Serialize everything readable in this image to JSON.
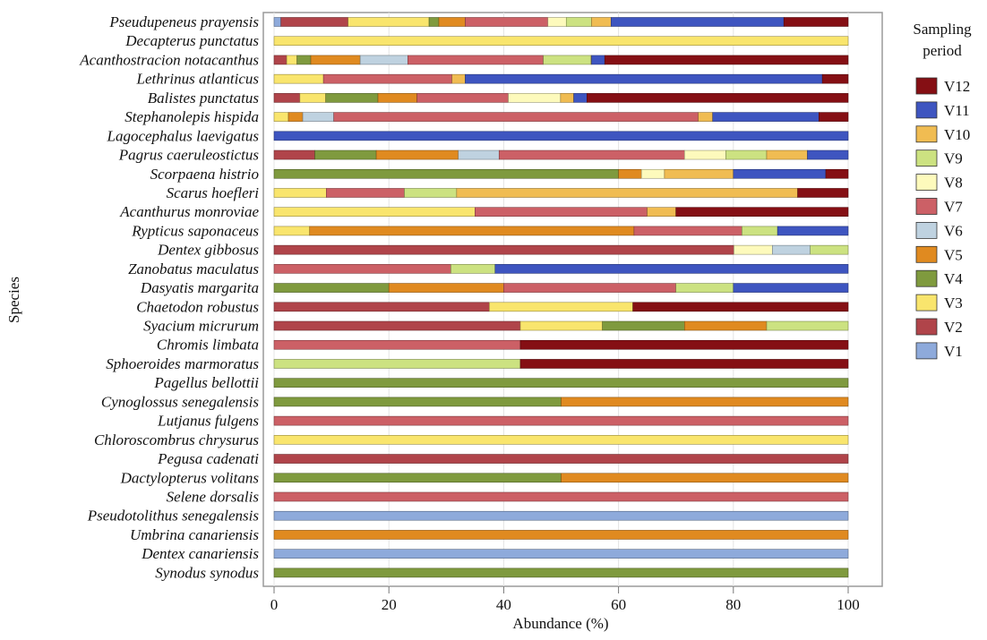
{
  "chart_data": {
    "type": "bar",
    "orientation": "horizontal",
    "stacked": true,
    "xlabel": "Abundance (%)",
    "ylabel": "Species",
    "xlim": [
      0,
      100
    ],
    "xticks": [
      0,
      20,
      40,
      60,
      80,
      100
    ],
    "grid": "vertical gridlines",
    "legend": {
      "title_line1": "Sampling",
      "title_line2": "period",
      "placement": "right",
      "order": [
        "V12",
        "V11",
        "V10",
        "V9",
        "V8",
        "V7",
        "V6",
        "V5",
        "V4",
        "V3",
        "V2",
        "V1"
      ]
    },
    "series": [
      {
        "name": "V1",
        "color": "#8eaadb"
      },
      {
        "name": "V2",
        "color": "#b0444a"
      },
      {
        "name": "V3",
        "color": "#f9e56d"
      },
      {
        "name": "V4",
        "color": "#7f9a3e"
      },
      {
        "name": "V5",
        "color": "#e08a20"
      },
      {
        "name": "V6",
        "color": "#bfd2e0"
      },
      {
        "name": "V7",
        "color": "#cc6066"
      },
      {
        "name": "V8",
        "color": "#fdfabc"
      },
      {
        "name": "V9",
        "color": "#cce281"
      },
      {
        "name": "V10",
        "color": "#f0bc52"
      },
      {
        "name": "V11",
        "color": "#3e55c0"
      },
      {
        "name": "V12",
        "color": "#850f14"
      }
    ],
    "categories": [
      {
        "name": "Pseudupeneus prayensis",
        "segments": [
          [
            "V1",
            1.2
          ],
          [
            "V2",
            11.7
          ],
          [
            "V3",
            14.1
          ],
          [
            "V4",
            1.7
          ],
          [
            "V5",
            4.6
          ],
          [
            "V7",
            14.4
          ],
          [
            "V8",
            3.2
          ],
          [
            "V9",
            4.4
          ],
          [
            "V10",
            3.4
          ],
          [
            "V11",
            30.1
          ],
          [
            "V12",
            11.2
          ]
        ]
      },
      {
        "name": "Decapterus punctatus",
        "segments": [
          [
            "V3",
            100
          ]
        ]
      },
      {
        "name": "Acanthostracion notacanthus",
        "segments": [
          [
            "V2",
            2.2
          ],
          [
            "V3",
            1.8
          ],
          [
            "V4",
            2.4
          ],
          [
            "V5",
            8.6
          ],
          [
            "V6",
            8.3
          ],
          [
            "V7",
            23.6
          ],
          [
            "V9",
            8.3
          ],
          [
            "V10",
            0.1
          ],
          [
            "V11",
            2.3
          ],
          [
            "V12",
            42.4
          ]
        ]
      },
      {
        "name": "Lethrinus atlanticus",
        "segments": [
          [
            "V3",
            8.6
          ],
          [
            "V7",
            22.4
          ],
          [
            "V10",
            2.3
          ],
          [
            "V11",
            62.2
          ],
          [
            "V12",
            4.5
          ]
        ]
      },
      {
        "name": "Balistes punctatus",
        "segments": [
          [
            "V2",
            4.5
          ],
          [
            "V3",
            4.5
          ],
          [
            "V4",
            9.1
          ],
          [
            "V5",
            6.8
          ],
          [
            "V7",
            15.9
          ],
          [
            "V8",
            9.1
          ],
          [
            "V10",
            2.3
          ],
          [
            "V11",
            2.3
          ],
          [
            "V12",
            45.5
          ]
        ]
      },
      {
        "name": "Stephanolepis hispida",
        "segments": [
          [
            "V3",
            2.5
          ],
          [
            "V5",
            2.5
          ],
          [
            "V6",
            5.4
          ],
          [
            "V7",
            63.5
          ],
          [
            "V10",
            2.5
          ],
          [
            "V11",
            18.5
          ],
          [
            "V12",
            5.1
          ]
        ]
      },
      {
        "name": "Lagocephalus laevigatus",
        "segments": [
          [
            "V11",
            100
          ]
        ]
      },
      {
        "name": "Pagrus caeruleostictus",
        "segments": [
          [
            "V2",
            7.1
          ],
          [
            "V4",
            10.7
          ],
          [
            "V5",
            14.3
          ],
          [
            "V6",
            7.1
          ],
          [
            "V7",
            32.3
          ],
          [
            "V8",
            7.2
          ],
          [
            "V9",
            7.1
          ],
          [
            "V10",
            7.1
          ],
          [
            "V11",
            7.1
          ]
        ]
      },
      {
        "name": "Scorpaena histrio",
        "segments": [
          [
            "V4",
            60
          ],
          [
            "V5",
            4
          ],
          [
            "V8",
            4
          ],
          [
            "V10",
            12
          ],
          [
            "V11",
            16.1
          ],
          [
            "V12",
            3.9
          ]
        ]
      },
      {
        "name": "Scarus hoefleri",
        "segments": [
          [
            "V3",
            9.1
          ],
          [
            "V7",
            13.6
          ],
          [
            "V9",
            9.1
          ],
          [
            "V10",
            59.4
          ],
          [
            "V12",
            8.8
          ]
        ]
      },
      {
        "name": "Acanthurus monroviae",
        "segments": [
          [
            "V3",
            35
          ],
          [
            "V7",
            30
          ],
          [
            "V10",
            5
          ],
          [
            "V12",
            30
          ]
        ]
      },
      {
        "name": "Rypticus saponaceus",
        "segments": [
          [
            "V3",
            6.2
          ],
          [
            "V5",
            56.5
          ],
          [
            "V7",
            18.8
          ],
          [
            "V9",
            6.2
          ],
          [
            "V11",
            12.3
          ]
        ]
      },
      {
        "name": "Dentex gibbosus",
        "segments": [
          [
            "V2",
            80.1
          ],
          [
            "V8",
            6.7
          ],
          [
            "V6",
            6.6
          ],
          [
            "V9",
            6.6
          ]
        ]
      },
      {
        "name": "Zanobatus maculatus",
        "segments": [
          [
            "V7",
            30.8
          ],
          [
            "V9",
            7.7
          ],
          [
            "V11",
            61.5
          ]
        ]
      },
      {
        "name": "Dasyatis margarita",
        "segments": [
          [
            "V4",
            20
          ],
          [
            "V5",
            20
          ],
          [
            "V7",
            30
          ],
          [
            "V9",
            10
          ],
          [
            "V11",
            20
          ]
        ]
      },
      {
        "name": "Chaetodon robustus",
        "segments": [
          [
            "V2",
            37.5
          ],
          [
            "V3",
            25
          ],
          [
            "V12",
            37.5
          ]
        ]
      },
      {
        "name": "Syacium micrurum",
        "segments": [
          [
            "V2",
            42.9
          ],
          [
            "V3",
            14.3
          ],
          [
            "V4",
            14.3
          ],
          [
            "V5",
            14.3
          ],
          [
            "V9",
            14.2
          ]
        ]
      },
      {
        "name": "Chromis limbata",
        "segments": [
          [
            "V7",
            42.9
          ],
          [
            "V12",
            57.1
          ]
        ]
      },
      {
        "name": "Sphoeroides marmoratus",
        "segments": [
          [
            "V9",
            42.9
          ],
          [
            "V12",
            57.1
          ]
        ]
      },
      {
        "name": "Pagellus bellottii",
        "segments": [
          [
            "V4",
            100
          ]
        ]
      },
      {
        "name": "Cynoglossus senegalensis",
        "segments": [
          [
            "V4",
            50
          ],
          [
            "V5",
            50
          ]
        ]
      },
      {
        "name": "Lutjanus fulgens",
        "segments": [
          [
            "V7",
            100
          ]
        ]
      },
      {
        "name": "Chloroscombrus chrysurus",
        "segments": [
          [
            "V3",
            100
          ]
        ]
      },
      {
        "name": "Pegusa cadenati",
        "segments": [
          [
            "V2",
            100
          ]
        ]
      },
      {
        "name": "Dactylopterus volitans",
        "segments": [
          [
            "V4",
            50
          ],
          [
            "V5",
            50
          ]
        ]
      },
      {
        "name": "Selene dorsalis",
        "segments": [
          [
            "V7",
            100
          ]
        ]
      },
      {
        "name": "Pseudotolithus senegalensis",
        "segments": [
          [
            "V1",
            100
          ]
        ]
      },
      {
        "name": "Umbrina canariensis",
        "segments": [
          [
            "V5",
            100
          ]
        ]
      },
      {
        "name": "Dentex canariensis",
        "segments": [
          [
            "V1",
            100
          ]
        ]
      },
      {
        "name": "Synodus synodus",
        "segments": [
          [
            "V4",
            100
          ]
        ]
      }
    ]
  }
}
